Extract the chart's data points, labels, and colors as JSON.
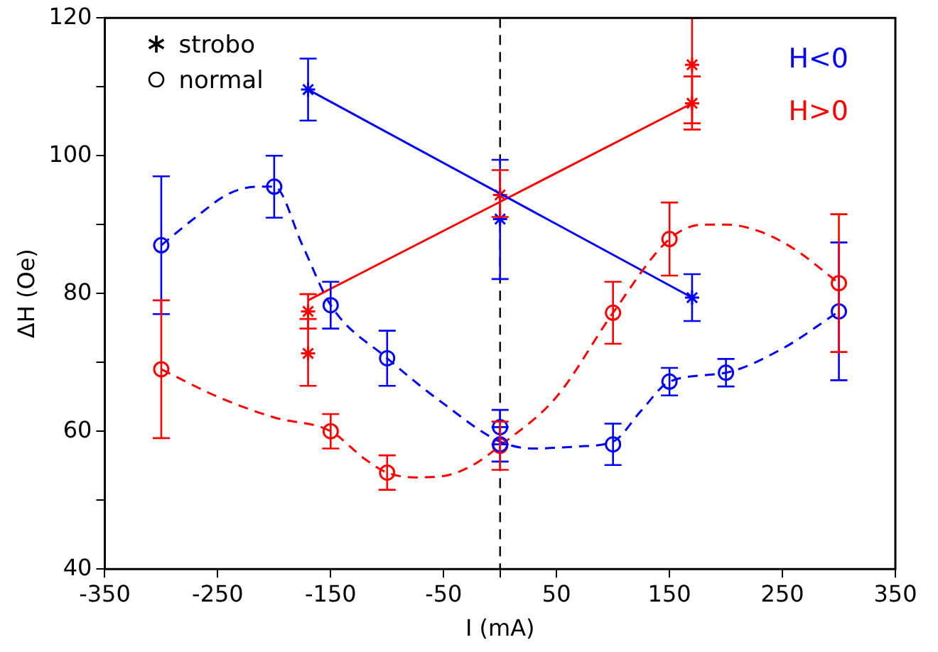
{
  "chart_data": {
    "type": "scatter",
    "xlabel": "I (mA)",
    "ylabel": "ΔH (Oe)",
    "xlim": [
      -350,
      350
    ],
    "xticks": [
      -350,
      -250,
      -150,
      -50,
      {
        "value": 0,
        "label": null
      },
      50,
      150,
      250,
      350
    ],
    "ylim": [
      40,
      120
    ],
    "yticks": [
      40,
      {
        "value": 50,
        "label": null
      },
      60,
      {
        "value": 70,
        "label": null
      },
      80,
      {
        "value": 90,
        "label": null
      },
      100,
      {
        "value": 110,
        "label": null
      },
      120
    ],
    "grid": false,
    "annotations": [
      "strobo",
      "normal",
      "H<0",
      "H>0"
    ],
    "ref_lines": [
      {
        "axis": "x",
        "value": 0,
        "color": "#000000",
        "line_style": "dashed"
      }
    ],
    "series": [
      {
        "color": "#0000ff",
        "marker": "circle",
        "x": [
          -300,
          -200,
          -150,
          -100,
          0,
          0,
          100,
          150,
          200,
          300
        ],
        "values": [
          87,
          95.5,
          78.3,
          70.6,
          60.6,
          58.1,
          58.1,
          67.2,
          68.5,
          77.4
        ],
        "errors": [
          10,
          4.5,
          3.4,
          4,
          2.5,
          2.5,
          3,
          2,
          2,
          10
        ]
      },
      {
        "type": "line",
        "color": "#0000ff",
        "marker": "none",
        "line_style": "dashed",
        "x": [
          -300,
          -270,
          -240,
          -215,
          -200,
          -175,
          -150,
          -100,
          -50,
          0,
          30,
          70,
          100,
          125,
          150,
          200,
          250,
          300
        ],
        "values": [
          87,
          91,
          94.5,
          95.5,
          95.5,
          87,
          78.3,
          70.6,
          64,
          58.5,
          57.5,
          57.8,
          58.5,
          63,
          67.2,
          68.5,
          72,
          77.4
        ]
      },
      {
        "color": "#ff0000",
        "marker": "circle",
        "x": [
          -300,
          -150,
          -100,
          0,
          100,
          150,
          300
        ],
        "values": [
          69,
          60,
          54,
          57.9,
          77.2,
          87.9,
          81.5
        ],
        "errors": [
          10,
          2.5,
          2.5,
          3.5,
          4.5,
          5.3,
          10
        ]
      },
      {
        "type": "line",
        "color": "#ff0000",
        "marker": "none",
        "line_style": "dashed",
        "x": [
          -300,
          -250,
          -200,
          -150,
          -120,
          -100,
          -75,
          -50,
          -25,
          0,
          50,
          100,
          150,
          180,
          200,
          230,
          260,
          300
        ],
        "values": [
          69,
          65,
          62,
          60,
          56,
          54,
          53.3,
          53.5,
          55,
          57.9,
          65,
          77.2,
          87.9,
          90,
          90,
          89,
          86.5,
          81.5
        ]
      },
      {
        "color": "#0000ff",
        "marker": "cross",
        "x": [
          -170,
          0,
          170
        ],
        "values": [
          109.6,
          90.8,
          79.4
        ],
        "errors": [
          4.5,
          [
            82.1,
            99.4
          ],
          3.4
        ]
      },
      {
        "type": "line",
        "color": "#0000ff",
        "marker": "none",
        "line_style": "solid",
        "x": [
          -170,
          170
        ],
        "values": [
          109.6,
          79.4
        ]
      },
      {
        "color": "#ff0000",
        "marker": "cross",
        "x": [
          -170,
          -170,
          0,
          170,
          170
        ],
        "values": [
          77.4,
          71.3,
          94.3,
          107.6,
          113.2
        ],
        "errors": [
          2.5,
          [
            66.6,
            76.3
          ],
          [
            91.1,
            97.9
          ],
          [
            103.8,
            111.5
          ],
          [
            104.7,
            120
          ]
        ]
      },
      {
        "type": "line",
        "color": "#ff0000",
        "marker": "none",
        "line_style": "solid",
        "x": [
          -170,
          170
        ],
        "values": [
          79,
          107.6
        ]
      }
    ]
  }
}
